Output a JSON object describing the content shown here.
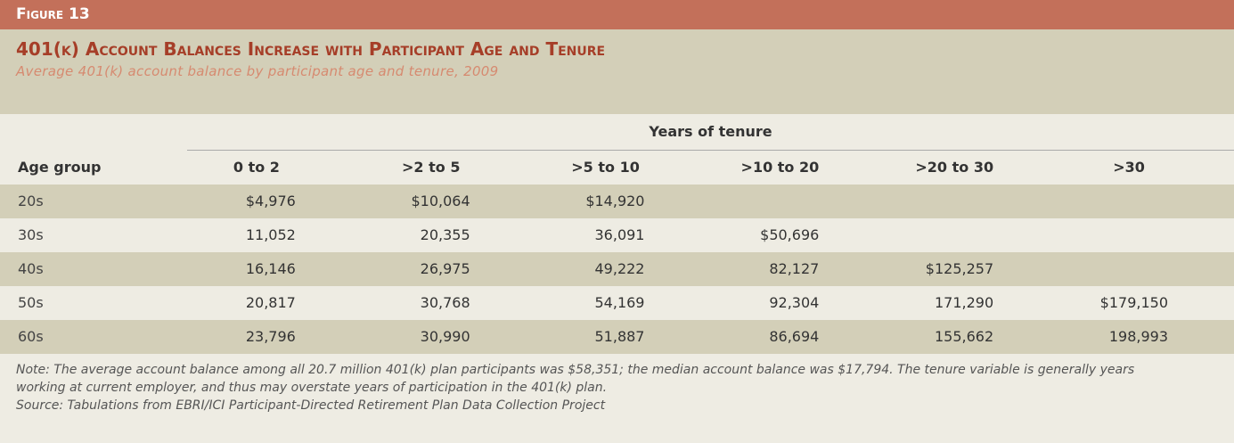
{
  "figure_label": "Figure 13",
  "title": "401(k) Account Balances Increase with Participant Age and Tenure",
  "subtitle": "Average 401(k) account balance by participant age and tenure, 2009",
  "table": {
    "group_header": "Years of tenure",
    "columns": [
      "Age group",
      "0 to 2",
      ">2 to 5",
      ">5 to 10",
      ">10 to 20",
      ">20 to 30",
      ">30"
    ],
    "rows": [
      [
        "20s",
        "$4,976",
        "$10,064",
        "$14,920",
        null,
        null,
        null
      ],
      [
        "30s",
        "11,052",
        "20,355",
        "36,091",
        "$50,696",
        null,
        null
      ],
      [
        "40s",
        "16,146",
        "26,975",
        "49,222",
        "82,127",
        "$125,257",
        null
      ],
      [
        "50s",
        "20,817",
        "30,768",
        "54,169",
        "92,304",
        "171,290",
        "$179,150"
      ],
      [
        "60s",
        "23,796",
        "30,990",
        "51,887",
        "86,694",
        "155,662",
        "198,993"
      ]
    ]
  },
  "note": "Note: The average account balance among all 20.7 million 401(k) plan participants was $58,351; the median account balance was $17,794. The tenure variable is generally years working at current employer, and thus may overstate years of participation in the 401(k) plan.",
  "source": "Source: Tabulations from EBRI/ICI Participant-Directed Retirement Plan Data Collection Project"
}
